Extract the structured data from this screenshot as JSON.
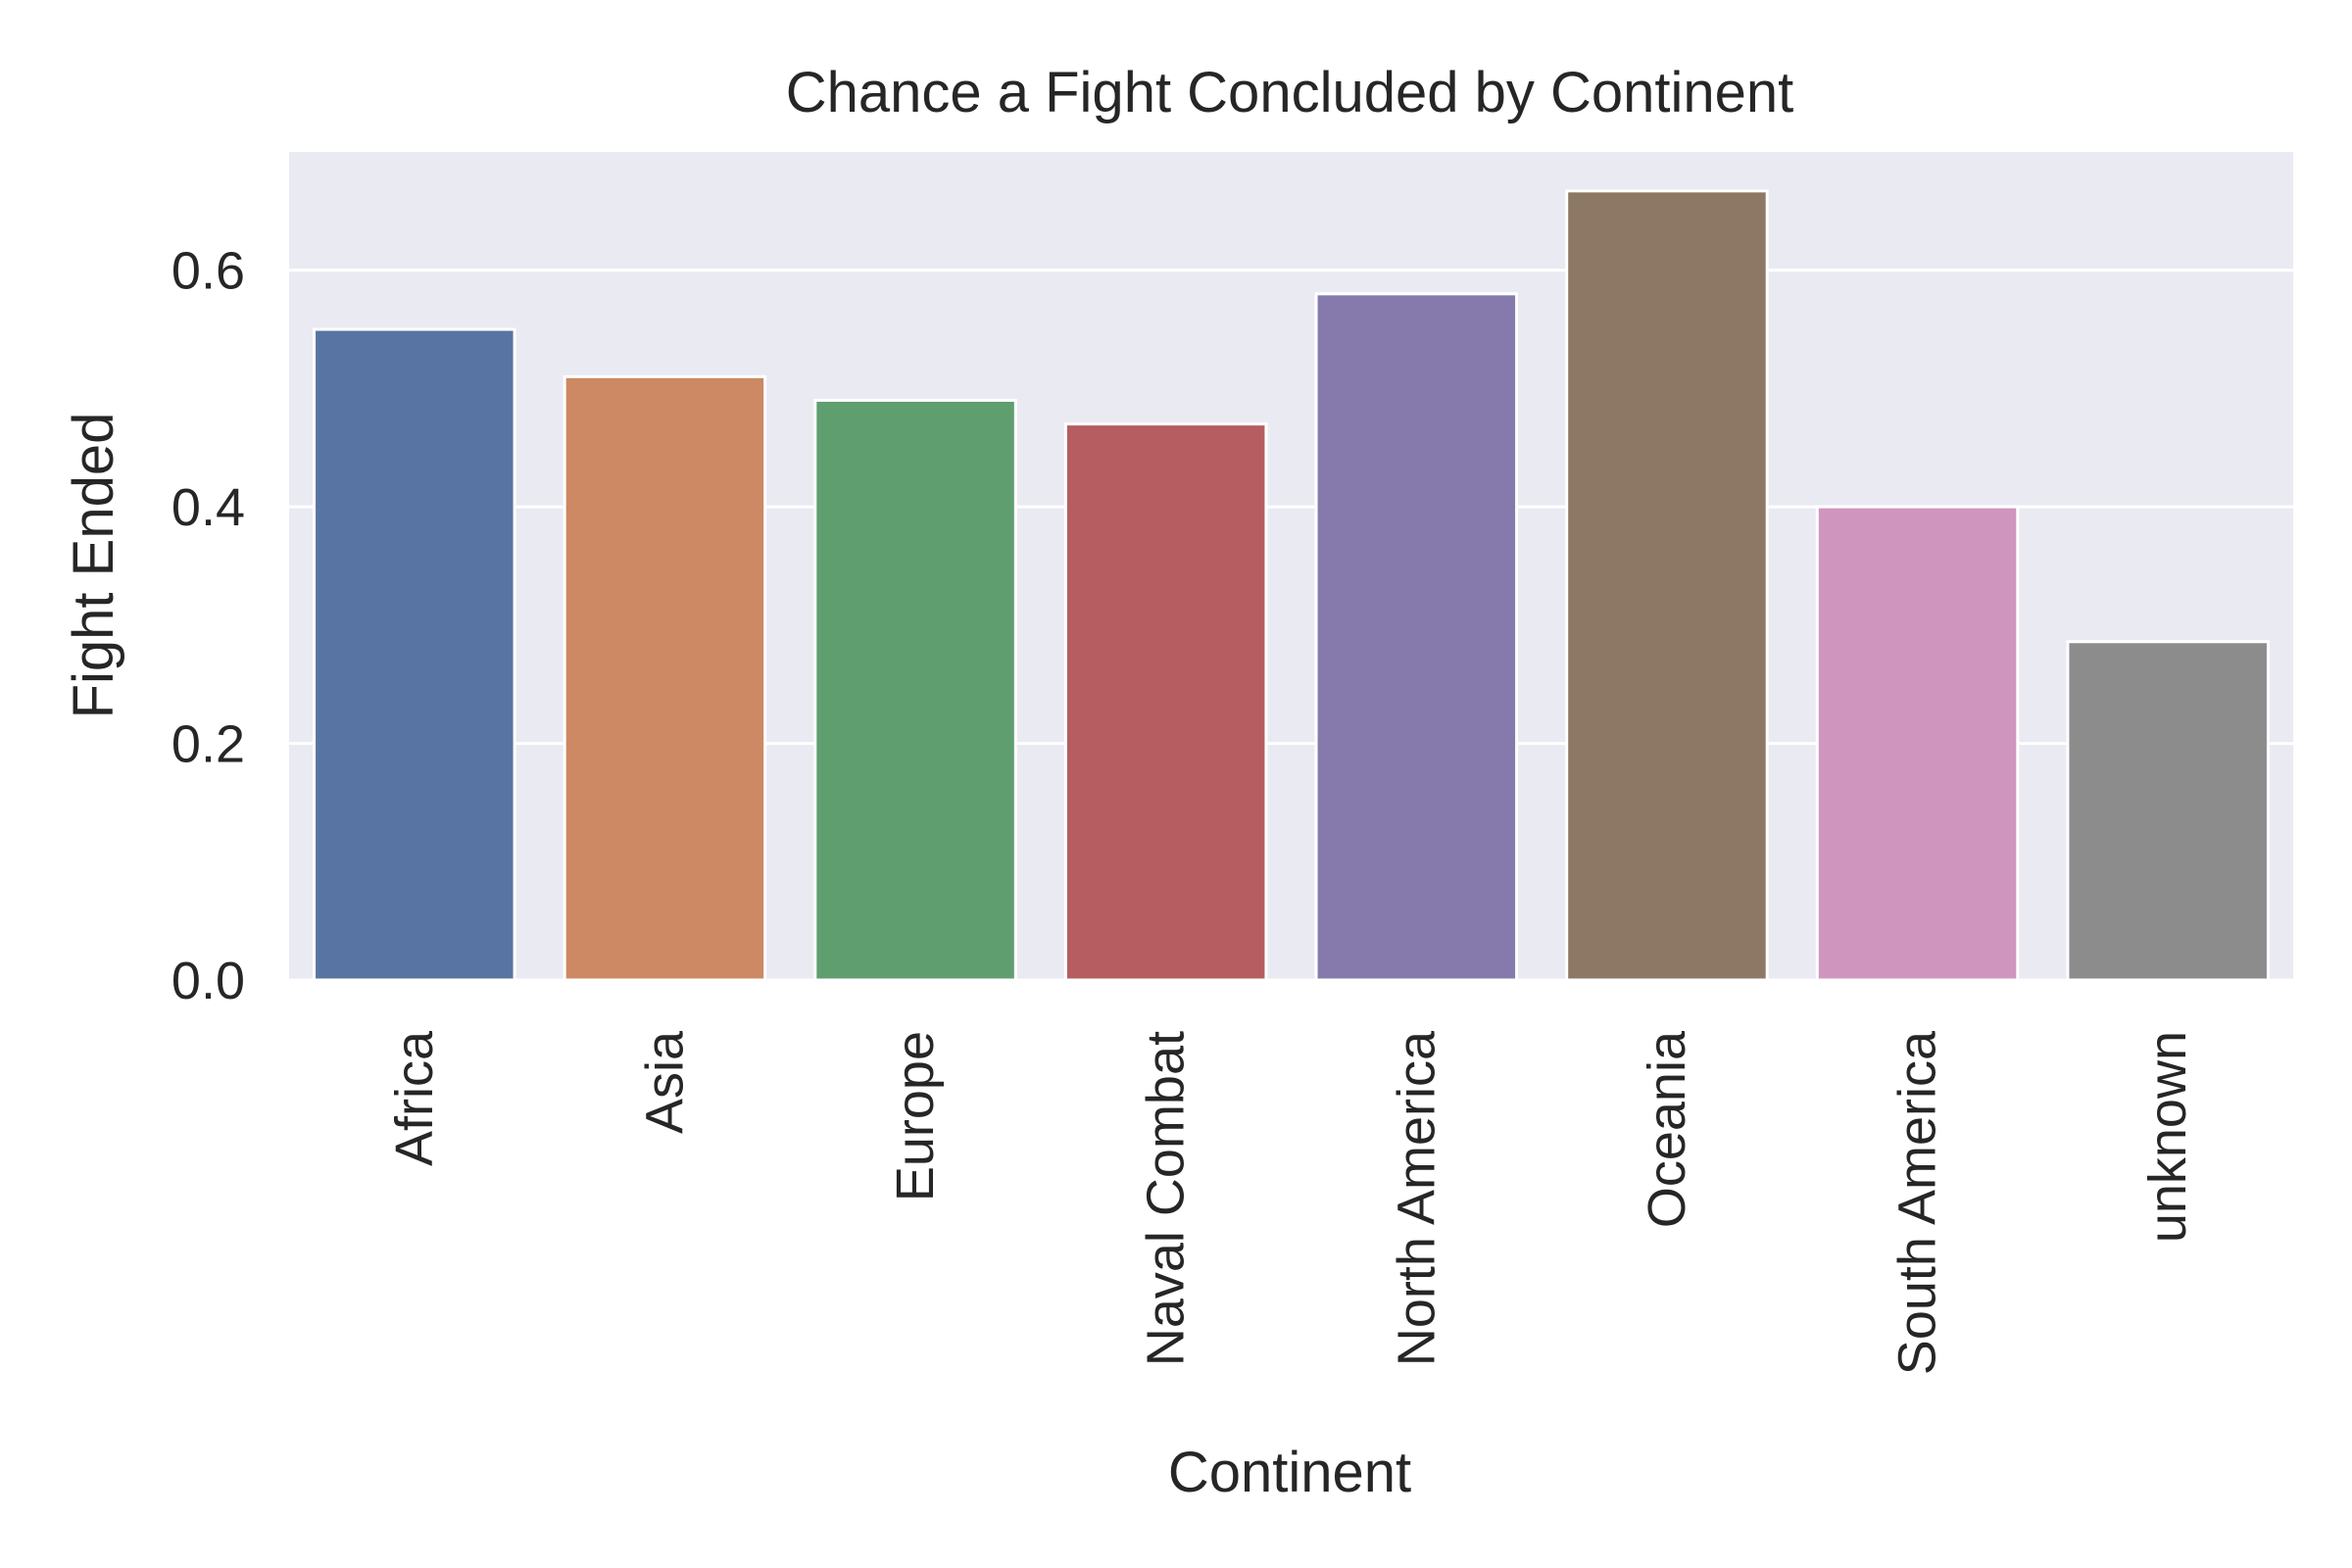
{
  "chart_data": {
    "type": "bar",
    "title": "Chance a Fight Concluded by Continent",
    "xlabel": "Continent",
    "ylabel": "Fight Ended",
    "categories": [
      "Africa",
      "Asia",
      "Europe",
      "Naval Combat",
      "North America",
      "Oceania",
      "South America",
      "unknown"
    ],
    "values": [
      0.55,
      0.51,
      0.49,
      0.47,
      0.58,
      0.667,
      0.4,
      0.286
    ],
    "colors": [
      "#5874a2",
      "#cc8963",
      "#5f9e6e",
      "#b55d60",
      "#857aab",
      "#8d7866",
      "#d095bf",
      "#8c8c8c"
    ],
    "ylim": [
      0,
      0.7
    ],
    "yticks": [
      0.0,
      0.2,
      0.4,
      0.6
    ],
    "ytick_labels": [
      "0.0",
      "0.2",
      "0.4",
      "0.6"
    ],
    "grid": true,
    "background": "#eaeaf2"
  }
}
